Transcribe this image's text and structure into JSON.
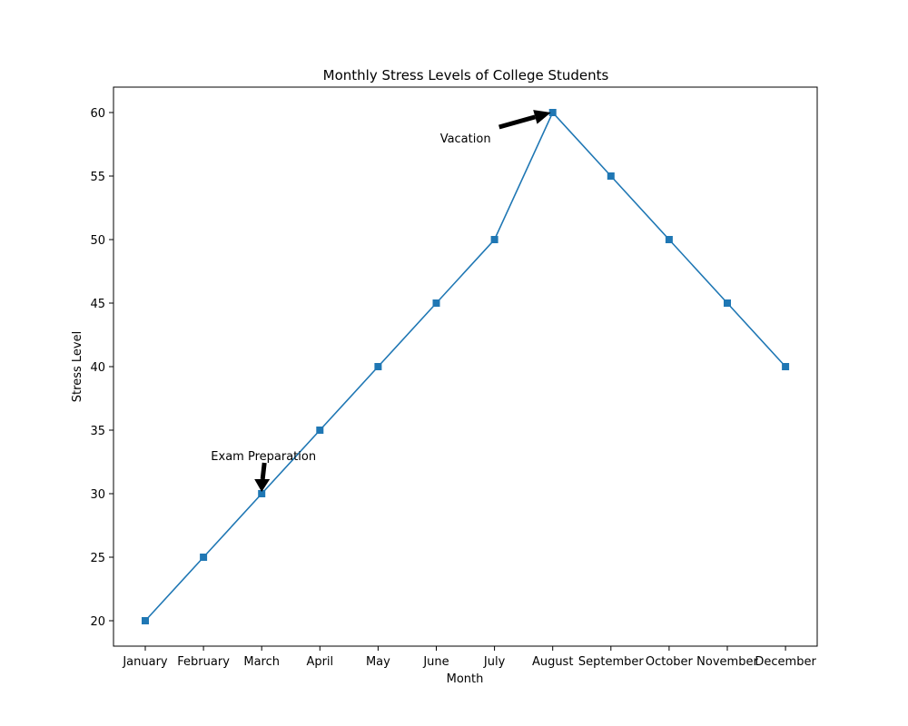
{
  "chart_data": {
    "type": "line",
    "title": "Monthly Stress Levels of College Students",
    "xlabel": "Month",
    "ylabel": "Stress Level",
    "categories": [
      "January",
      "February",
      "March",
      "April",
      "May",
      "June",
      "July",
      "August",
      "September",
      "October",
      "November",
      "December"
    ],
    "series": [
      {
        "values": [
          20,
          25,
          30,
          35,
          40,
          45,
          50,
          60,
          55,
          50,
          45,
          40
        ],
        "color": "#1f77b4",
        "marker": "square"
      }
    ],
    "ylim": [
      18,
      62
    ],
    "yticks": [
      20,
      25,
      30,
      35,
      40,
      45,
      50,
      55,
      60
    ],
    "grid": false,
    "annotations": [
      {
        "text": "Exam Preparation",
        "category": "March",
        "value": 30,
        "text_value": 33
      },
      {
        "text": "Vacation",
        "category": "August",
        "value": 60,
        "text_value": 58
      }
    ]
  }
}
